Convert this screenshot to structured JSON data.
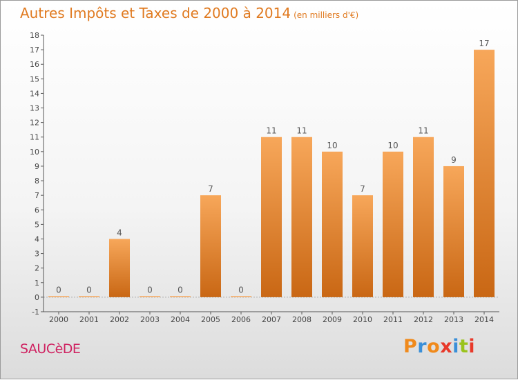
{
  "header": {
    "title": "Autres Impôts et Taxes de 2000 à 2014",
    "unit": "(en milliers d'€)"
  },
  "footer": {
    "location": "SAUCèDE",
    "logo": "Proxiti"
  },
  "colors": {
    "title": "#e07a20",
    "location": "#cf2160",
    "bar_top": "#f7a75a",
    "bar_bottom": "#c96714",
    "logo_letters": [
      "#f08a1c",
      "#3a8fd8",
      "#f08a1c",
      "#e8392a",
      "#3a8fd8",
      "#9ac31c",
      "#e8392a"
    ]
  },
  "chart_data": {
    "type": "bar",
    "categories": [
      "2000",
      "2001",
      "2002",
      "2003",
      "2004",
      "2005",
      "2006",
      "2007",
      "2008",
      "2009",
      "2010",
      "2011",
      "2012",
      "2013",
      "2014"
    ],
    "values": [
      0,
      0,
      4,
      0,
      0,
      7,
      0,
      11,
      11,
      10,
      7,
      10,
      11,
      9,
      17
    ],
    "value_labels": [
      "0",
      "0",
      "4",
      "0",
      "0",
      "7",
      "0",
      "11",
      "11",
      "10",
      "7",
      "10",
      "11",
      "9",
      "17"
    ],
    "yticks": [
      "-1",
      "0",
      "1",
      "2",
      "3",
      "4",
      "5",
      "6",
      "7",
      "8",
      "9",
      "10",
      "11",
      "12",
      "13",
      "14",
      "15",
      "16",
      "17",
      "18"
    ],
    "ylim": [
      -1,
      18
    ],
    "title": "Autres Impôts et Taxes de 2000 à 2014",
    "xlabel": "",
    "ylabel": ""
  }
}
